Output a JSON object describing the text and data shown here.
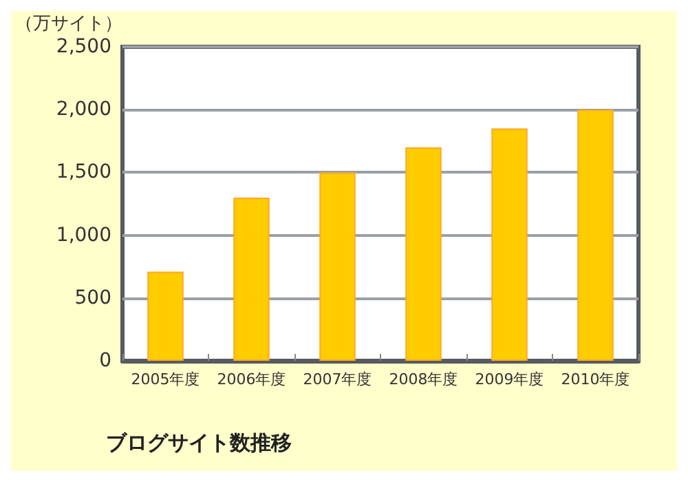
{
  "chart_data": {
    "type": "bar",
    "title": "ブログサイト数推移",
    "ylabel": "（万サイト）",
    "categories": [
      "2005年度",
      "2006年度",
      "2007年度",
      "2008年度",
      "2009年度",
      "2010年度"
    ],
    "values": [
      710,
      1300,
      1500,
      1700,
      1850,
      2000
    ],
    "color": "#ffcc00",
    "ylim": [
      0,
      2500
    ],
    "yticks": [
      0,
      500,
      {
        "value": 1000,
        "label": "1,000"
      },
      {
        "value": 1500,
        "label": "1,500"
      },
      {
        "value": 2000,
        "label": "2,000"
      },
      {
        "value": 2500,
        "label": "2,500"
      }
    ],
    "grid": "y"
  }
}
